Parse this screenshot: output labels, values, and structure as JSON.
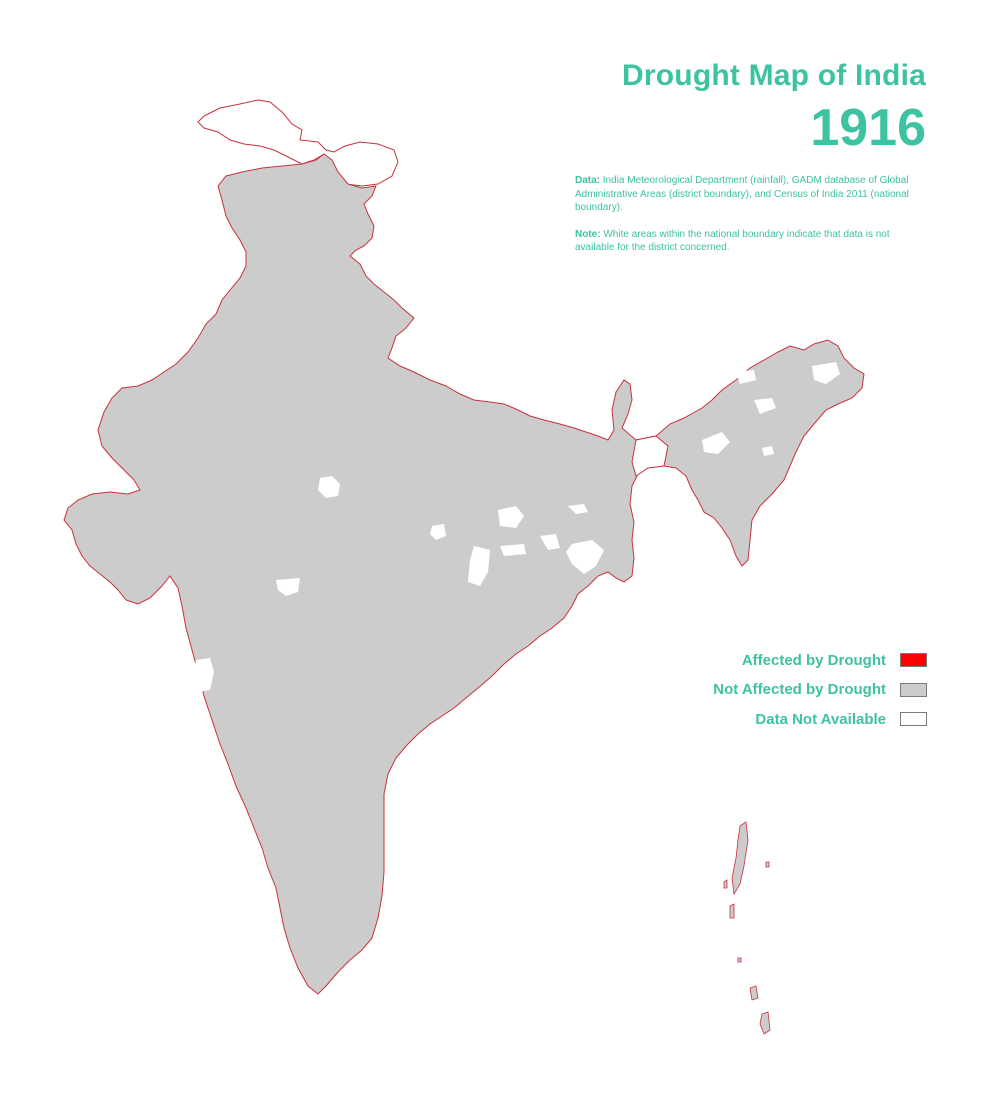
{
  "title": "Drought Map of India",
  "year": "1916",
  "notes": {
    "data_label": "Data:",
    "data_text": "India Meteorological Department (rainfall), GADM database of Global Administrative Areas (district boundary), and Census of India 2011 (national boundary).",
    "note_label": "Note:",
    "note_text": "White areas within the national boundary indicate that data is not available for the district concerned."
  },
  "legend": [
    {
      "label": "Affected by Drought",
      "color": "#ff0000"
    },
    {
      "label": "Not Affected by Drought",
      "color": "#cccccc"
    },
    {
      "label": "Data Not Available",
      "color": "#ffffff"
    }
  ],
  "colors": {
    "accent": "#3dc2a2",
    "boundary": "#c8323c",
    "not_affected": "#cccccc",
    "no_data": "#ffffff"
  }
}
